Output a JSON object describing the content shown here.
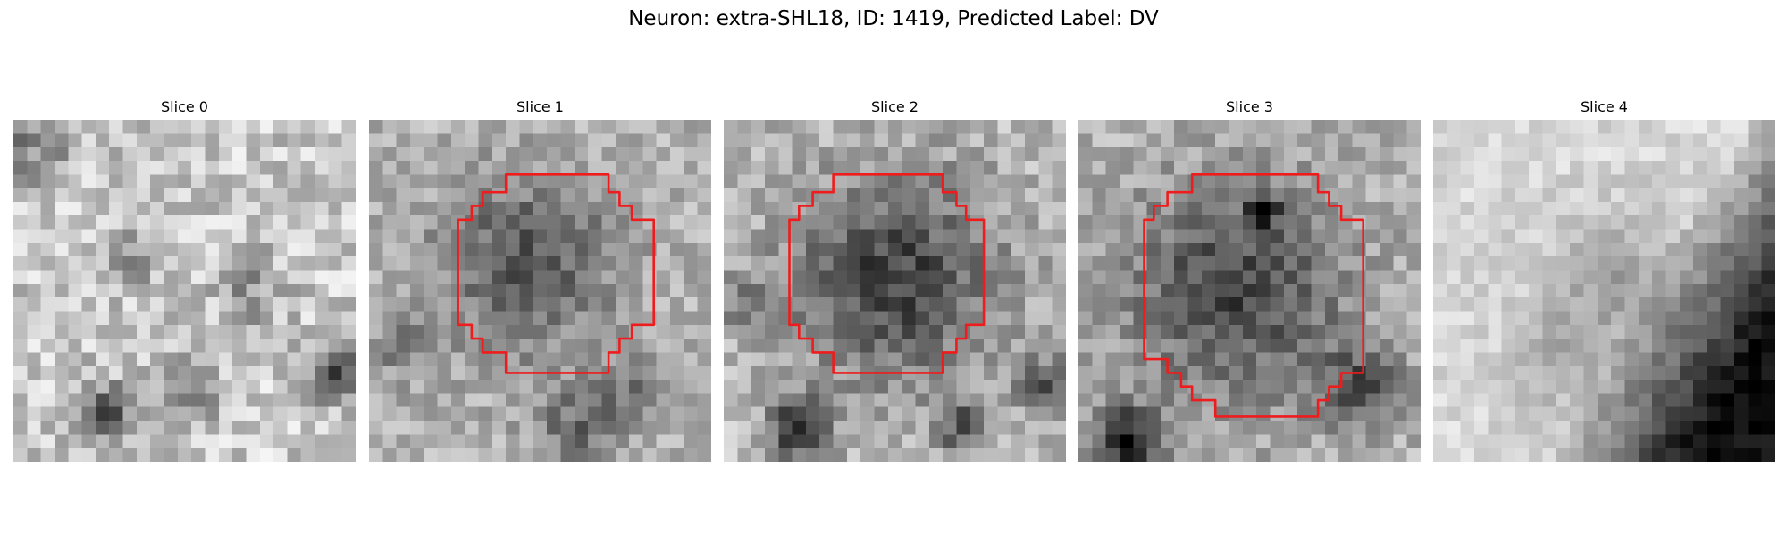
{
  "figure": {
    "title": "Neuron: extra-SHL18, ID: 1419, Predicted Label: DV"
  },
  "slices": [
    {
      "title": "Slice 0",
      "has_roi": false
    },
    {
      "title": "Slice 1",
      "has_roi": true
    },
    {
      "title": "Slice 2",
      "has_roi": true
    },
    {
      "title": "Slice 3",
      "has_roi": true
    },
    {
      "title": "Slice 4",
      "has_roi": false
    }
  ],
  "colors": {
    "roi_outline": "#ee1c1c",
    "background": "#ffffff"
  }
}
